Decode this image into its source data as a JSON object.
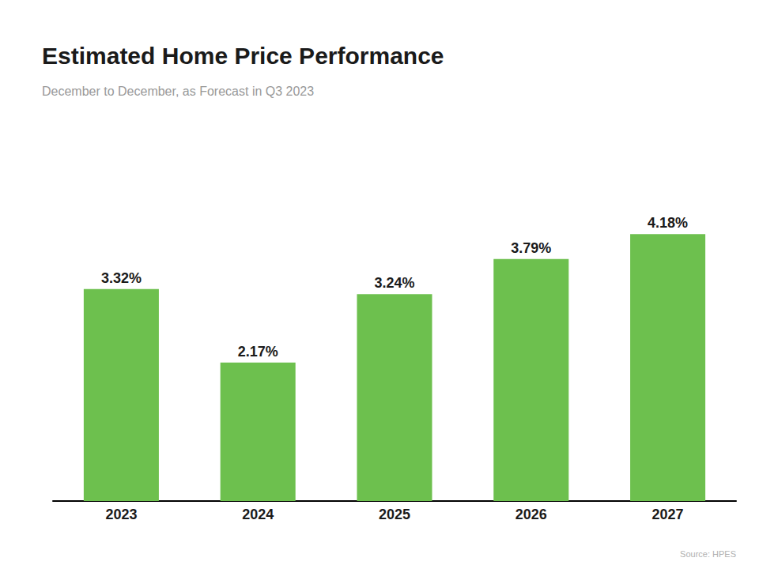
{
  "chart_data": {
    "type": "bar",
    "title": "Estimated Home Price Performance",
    "subtitle": "December to December, as Forecast in Q3 2023",
    "source": "Source: HPES",
    "categories": [
      "2023",
      "2024",
      "2025",
      "2026",
      "2027"
    ],
    "values": [
      3.32,
      2.17,
      3.24,
      3.79,
      4.18
    ],
    "value_labels": [
      "3.32%",
      "2.17%",
      "3.24%",
      "3.79%",
      "4.18%"
    ],
    "color": "#6DC04E",
    "ylim": [
      0,
      5.0
    ],
    "grid": false,
    "data_labels": true,
    "tick_labels": "x"
  }
}
